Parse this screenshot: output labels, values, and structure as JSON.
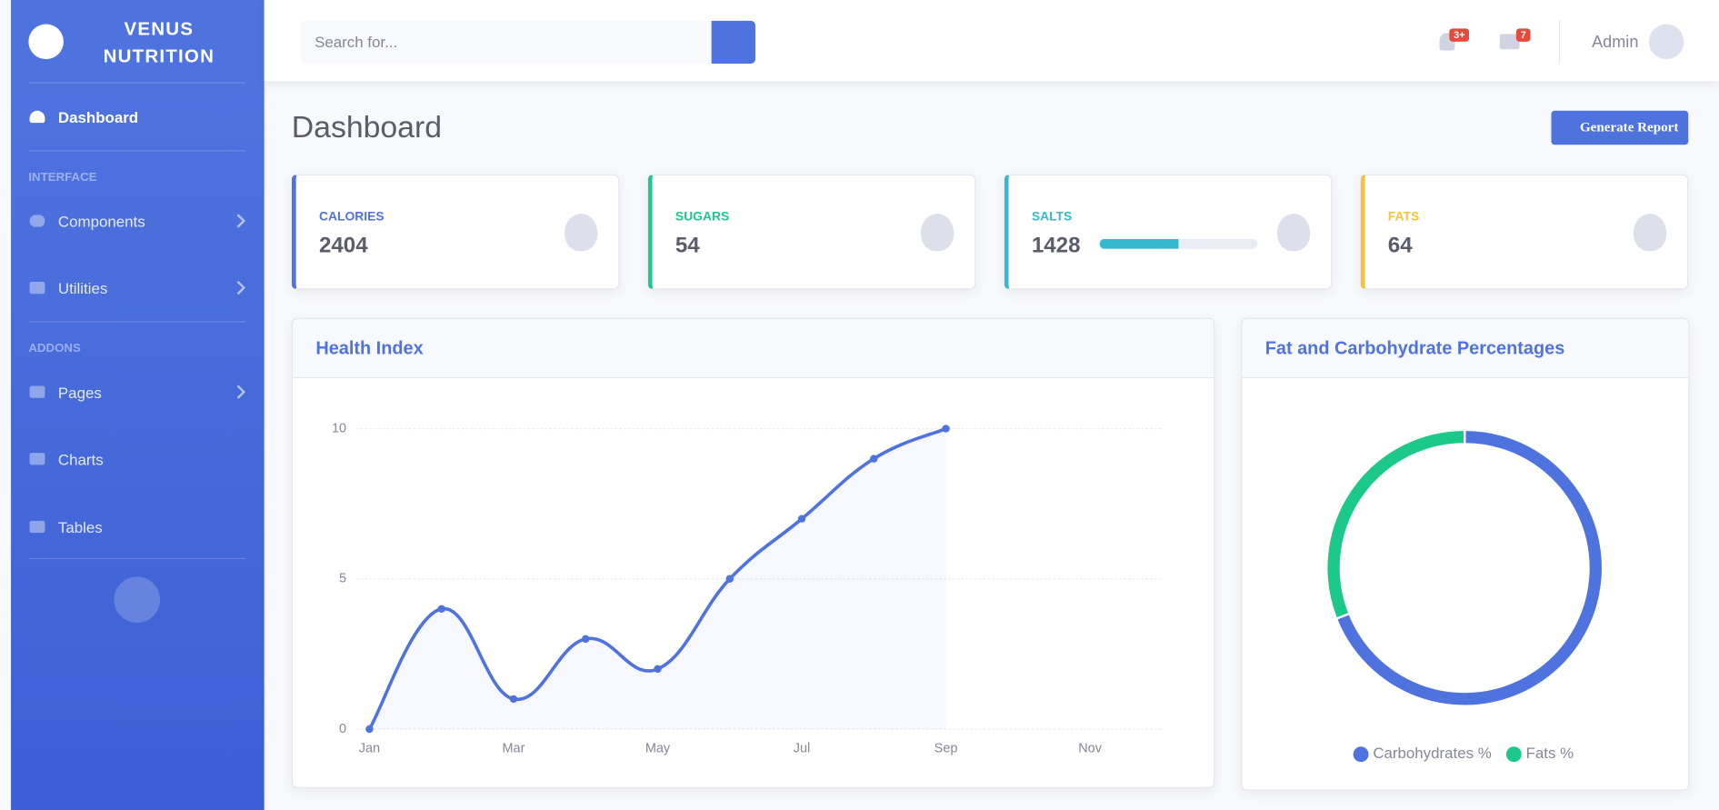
{
  "sidebar": {
    "brand": "VENUS NUTRITION",
    "nav": [
      "Dashboard"
    ],
    "sections": [
      {
        "heading": "INTERFACE",
        "items": [
          "Components",
          "Utilities"
        ]
      },
      {
        "heading": "ADDONS",
        "items": [
          "Pages",
          "Charts",
          "Tables"
        ]
      }
    ]
  },
  "topbar": {
    "search_placeholder": "Search for...",
    "alerts_badge": "3+",
    "messages_badge": "7",
    "user": "Admin"
  },
  "page": {
    "title": "Dashboard",
    "button": "Generate Report"
  },
  "cards": [
    {
      "label": "CALORIES",
      "value": "2404",
      "color": "#4e73df"
    },
    {
      "label": "SUGARS",
      "value": "54",
      "color": "#1cc88a"
    },
    {
      "label": "SALTS",
      "value": "1428",
      "color": "#36b9cc",
      "progress": 50
    },
    {
      "label": "FATS",
      "value": "64",
      "color": "#f6c23e"
    }
  ],
  "chart_data": [
    {
      "type": "line",
      "title": "Health Index",
      "categories": [
        "Jan",
        null,
        "Mar",
        null,
        "May",
        null,
        "Jul",
        null,
        "Sep",
        null,
        "Nov",
        null
      ],
      "values": [
        0,
        4,
        1,
        3,
        2,
        5,
        7,
        9,
        10,
        null,
        null,
        null
      ],
      "color": "#4e73df",
      "ylim": [
        0,
        10
      ],
      "yticks": [
        0,
        5,
        10
      ],
      "grid": true
    },
    {
      "type": "pie",
      "donut": true,
      "title": "Fat and Carbohydrate Percentages",
      "categories": [
        "Carbohydrates %",
        "Fats %"
      ],
      "values": [
        69,
        31
      ],
      "colors": [
        "#4e73df",
        "#1cc88a"
      ],
      "legend": "bottom"
    }
  ]
}
